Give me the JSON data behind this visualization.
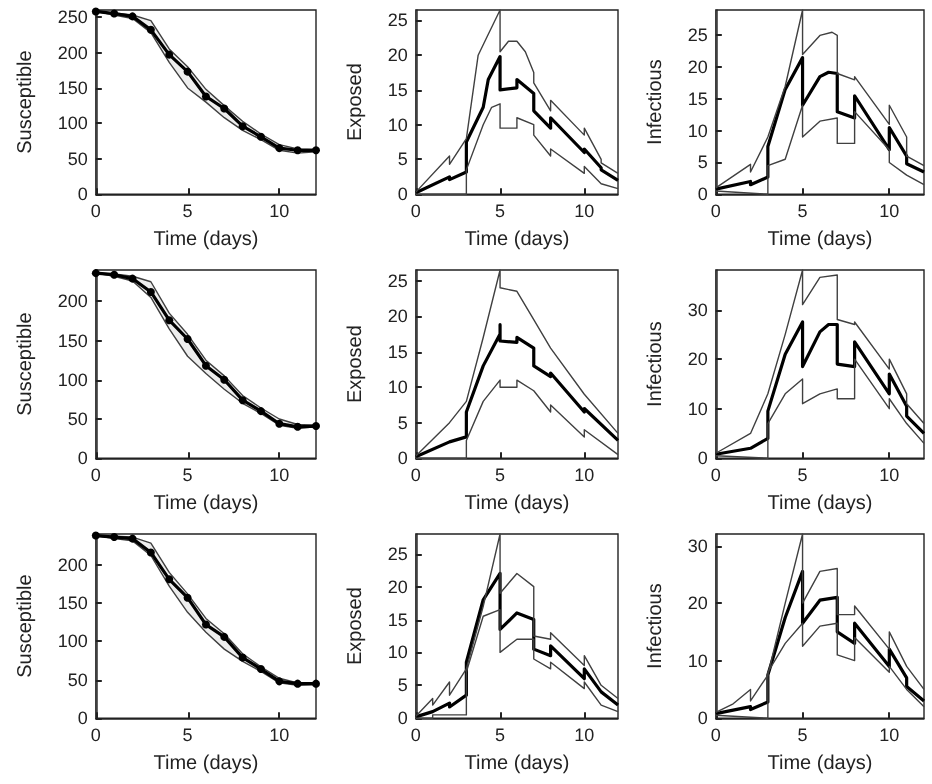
{
  "chart_data": [
    {
      "type": "line",
      "xlabel": "Time (days)",
      "ylabel": "Susceptible",
      "xlim": [
        0,
        12
      ],
      "xticks": [
        0,
        5,
        10
      ],
      "ylim": [
        0,
        260
      ],
      "yticks": [
        0,
        50,
        100,
        150,
        200,
        250
      ],
      "marker": "circle",
      "series": [
        {
          "color": "#000000",
          "x": [
            0,
            1,
            2,
            3,
            4,
            5,
            6,
            7,
            8,
            9,
            10,
            11,
            12
          ],
          "values": [
            258,
            255,
            251,
            232,
            197,
            173,
            138,
            121,
            96,
            81,
            65,
            62,
            62
          ],
          "lower": [
            258,
            253,
            248,
            228,
            186,
            150,
            130,
            108,
            90,
            77,
            62,
            58,
            60
          ],
          "upper": [
            258,
            256,
            253,
            245,
            205,
            180,
            148,
            125,
            103,
            85,
            70,
            64,
            63
          ]
        }
      ]
    },
    {
      "type": "line",
      "xlabel": "Time (days)",
      "ylabel": "Exposed",
      "xlim": [
        0,
        12
      ],
      "xticks": [
        0,
        5,
        10
      ],
      "ylim": [
        0,
        26.5
      ],
      "yticks": [
        0,
        5,
        10,
        15,
        20,
        25
      ],
      "series": [
        {
          "color": "#000000",
          "x": [
            0,
            2,
            2,
            3,
            3,
            4,
            4.3,
            5,
            5,
            6,
            6,
            7,
            7,
            8,
            8,
            10,
            10,
            11,
            11,
            12
          ],
          "values": [
            0.2,
            2.5,
            2.1,
            3.2,
            7.5,
            12.5,
            16.5,
            19.8,
            15,
            15.3,
            16.5,
            14.5,
            12,
            9.5,
            11,
            6,
            6.5,
            3.8,
            3.5,
            2
          ]
        },
        {
          "color": "#404040",
          "x": [
            0,
            2,
            2,
            3,
            3.7,
            4.2,
            5,
            5,
            5.5,
            6,
            6.5,
            7,
            7,
            8,
            8,
            10,
            10,
            11,
            11,
            12
          ],
          "values": [
            0.3,
            5.5,
            4.3,
            8,
            20,
            22.5,
            26.5,
            20.5,
            22,
            22,
            20.5,
            17.5,
            16,
            12,
            13.5,
            8.5,
            9.5,
            5,
            4.5,
            3
          ]
        },
        {
          "color": "#404040",
          "x": [
            0,
            3,
            3,
            4,
            4.5,
            5,
            5,
            6,
            6,
            7,
            7,
            8,
            8,
            10,
            10,
            11,
            12
          ],
          "values": [
            0,
            0,
            3.5,
            10,
            12.5,
            13,
            9.5,
            9.5,
            11,
            10,
            8.5,
            5.5,
            6.5,
            3,
            4,
            1.5,
            0.8
          ]
        }
      ]
    },
    {
      "type": "line",
      "xlabel": "Time (days)",
      "ylabel": "Infectious",
      "xlim": [
        0,
        12
      ],
      "xticks": [
        0,
        5,
        10
      ],
      "ylim": [
        0,
        29
      ],
      "yticks": [
        0,
        5,
        10,
        15,
        20,
        25
      ],
      "series": [
        {
          "color": "#000000",
          "x": [
            0,
            2,
            2,
            3,
            3,
            4,
            5,
            5,
            6,
            6.5,
            7,
            7,
            8,
            8,
            10,
            10,
            11,
            11,
            12
          ],
          "values": [
            0.8,
            2,
            1.5,
            2.7,
            7.5,
            16.5,
            21.5,
            14,
            18.5,
            19.2,
            19,
            13,
            12,
            15.5,
            7,
            10.5,
            6,
            4.8,
            3.5
          ]
        },
        {
          "color": "#404040",
          "x": [
            0,
            2,
            2,
            3,
            4,
            5,
            5,
            6,
            6.7,
            7,
            7,
            8,
            8,
            10,
            10,
            11,
            11,
            12
          ],
          "values": [
            1,
            4.7,
            3.5,
            9,
            17,
            29,
            22,
            25,
            25.5,
            25,
            19,
            18,
            18.5,
            11,
            14,
            9,
            6,
            4.5
          ]
        },
        {
          "color": "#404040",
          "x": [
            0,
            3,
            3,
            4,
            5,
            5,
            6,
            7,
            7,
            8,
            8,
            10,
            10,
            11,
            12
          ],
          "values": [
            0.5,
            0,
            4.5,
            5.5,
            14,
            9,
            11.5,
            12,
            8,
            8,
            13,
            7,
            5,
            3,
            1.5
          ]
        }
      ]
    },
    {
      "type": "line",
      "xlabel": "Time (days)",
      "ylabel": "Susceptible",
      "xlim": [
        0,
        12
      ],
      "xticks": [
        0,
        5,
        10
      ],
      "ylim": [
        0,
        240
      ],
      "yticks": [
        0,
        50,
        100,
        150,
        200
      ],
      "marker": "circle",
      "series": [
        {
          "color": "#000000",
          "x": [
            0,
            1,
            2,
            3,
            4,
            5,
            6,
            7,
            8,
            9,
            10,
            11,
            12
          ],
          "values": [
            236,
            234,
            229,
            212,
            176,
            152,
            118,
            100,
            74,
            60,
            44,
            40,
            41
          ],
          "lower": [
            236,
            232,
            226,
            205,
            165,
            130,
            108,
            88,
            70,
            57,
            42,
            38,
            40
          ],
          "upper": [
            236,
            235,
            232,
            225,
            185,
            158,
            125,
            105,
            80,
            64,
            50,
            43,
            42
          ]
        }
      ]
    },
    {
      "type": "line",
      "xlabel": "Time (days)",
      "ylabel": "Exposed",
      "xlim": [
        0,
        12
      ],
      "xticks": [
        0,
        5,
        10
      ],
      "ylim": [
        0,
        26.5
      ],
      "yticks": [
        0,
        5,
        10,
        15,
        20,
        25
      ],
      "series": [
        {
          "color": "#000000",
          "x": [
            0,
            2,
            3,
            3,
            4,
            5,
            5,
            5,
            6,
            6,
            7,
            7,
            8,
            8,
            10,
            10,
            12
          ],
          "values": [
            0.2,
            2.3,
            3,
            6.5,
            13,
            17.5,
            18.8,
            16.5,
            16.3,
            17,
            15.5,
            13,
            11.5,
            12,
            6.5,
            7,
            2.5
          ]
        },
        {
          "color": "#404040",
          "x": [
            0,
            2,
            3,
            4,
            5,
            5,
            6,
            7,
            8,
            10,
            12
          ],
          "values": [
            0.3,
            5,
            8,
            17,
            26.5,
            24,
            23.5,
            19.5,
            15.5,
            9,
            3.5
          ]
        },
        {
          "color": "#404040",
          "x": [
            0,
            3,
            3,
            4,
            5,
            5,
            6,
            6,
            7,
            8,
            8,
            10,
            10,
            12
          ],
          "values": [
            0,
            0,
            2.5,
            8,
            11,
            10,
            10,
            11,
            9.5,
            6.5,
            7.5,
            3,
            4,
            0.5
          ]
        }
      ]
    },
    {
      "type": "line",
      "xlabel": "Time (days)",
      "ylabel": "Infectious",
      "xlim": [
        0,
        12
      ],
      "xticks": [
        0,
        5,
        10
      ],
      "ylim": [
        0,
        38
      ],
      "yticks": [
        0,
        10,
        20,
        30
      ],
      "series": [
        {
          "color": "#000000",
          "x": [
            0,
            2,
            3,
            3,
            4,
            5,
            5,
            6,
            6.5,
            7,
            7,
            8,
            8,
            10,
            10,
            11,
            11,
            12
          ],
          "values": [
            0.8,
            2,
            4,
            9.5,
            21,
            27.5,
            18.5,
            25.5,
            27,
            27,
            19,
            18.5,
            23.5,
            13,
            17,
            10.5,
            8.5,
            5
          ]
        },
        {
          "color": "#404040",
          "x": [
            0,
            2,
            3,
            4,
            5,
            5,
            6,
            7,
            7,
            8,
            8,
            10,
            10,
            11,
            11,
            12
          ],
          "values": [
            1,
            5,
            13,
            25,
            38,
            31,
            36.5,
            37,
            28,
            27,
            27.5,
            18,
            20,
            13,
            11,
            7
          ]
        },
        {
          "color": "#404040",
          "x": [
            0,
            3,
            3,
            4,
            5,
            5,
            6,
            7,
            7,
            8,
            8,
            10,
            10,
            11,
            12
          ],
          "values": [
            0.5,
            0,
            7,
            13,
            16,
            11,
            13,
            14,
            12,
            12,
            20,
            10,
            12,
            7,
            3
          ]
        }
      ]
    },
    {
      "type": "line",
      "xlabel": "Time (days)",
      "ylabel": "Susceptible",
      "xlim": [
        0,
        12
      ],
      "xticks": [
        0,
        5,
        10
      ],
      "ylim": [
        0,
        240
      ],
      "yticks": [
        0,
        50,
        100,
        150,
        200
      ],
      "marker": "circle",
      "series": [
        {
          "color": "#000000",
          "x": [
            0,
            1,
            2,
            3,
            4,
            5,
            6,
            7,
            8,
            9,
            10,
            11,
            12
          ],
          "values": [
            238,
            236,
            234,
            216,
            181,
            157,
            122,
            106,
            79,
            64,
            48,
            45,
            45
          ],
          "lower": [
            238,
            234,
            231,
            212,
            172,
            138,
            112,
            90,
            74,
            61,
            46,
            43,
            44
          ],
          "upper": [
            238,
            237,
            236,
            228,
            190,
            162,
            130,
            110,
            84,
            67,
            52,
            46,
            46
          ]
        }
      ]
    },
    {
      "type": "line",
      "xlabel": "Time (days)",
      "ylabel": "Exposed",
      "xlim": [
        0,
        12
      ],
      "xticks": [
        0,
        5,
        10
      ],
      "ylim": [
        0,
        28
      ],
      "yticks": [
        0,
        5,
        10,
        15,
        20,
        25
      ],
      "series": [
        {
          "color": "#000000",
          "x": [
            0,
            1,
            2,
            2,
            3,
            3,
            4,
            5,
            5,
            6,
            6.5,
            7,
            7,
            8,
            8,
            10,
            10,
            11,
            12
          ],
          "values": [
            0.2,
            1,
            2.3,
            1.7,
            3.5,
            8.5,
            18,
            22,
            13.5,
            16,
            15.5,
            15,
            10.5,
            9.5,
            11,
            6,
            7.5,
            4,
            2
          ]
        },
        {
          "color": "#404040",
          "x": [
            0,
            1,
            1,
            2,
            2,
            3,
            4,
            5,
            5,
            6,
            7,
            7,
            8,
            8,
            10,
            10,
            11,
            12
          ],
          "values": [
            0.3,
            3,
            2,
            5.5,
            3.5,
            7.5,
            17,
            28,
            19,
            22,
            20,
            12.5,
            12,
            13,
            8,
            9.5,
            5,
            3
          ]
        },
        {
          "color": "#404040",
          "x": [
            0,
            1,
            1,
            3,
            3,
            4,
            5,
            5,
            6,
            7,
            7,
            8,
            8,
            10,
            10,
            11,
            12
          ],
          "values": [
            0,
            0,
            0.5,
            0.5,
            7,
            15.5,
            16.5,
            10,
            12,
            12,
            9,
            7.5,
            8.5,
            4.5,
            5.5,
            2,
            1
          ]
        }
      ]
    },
    {
      "type": "line",
      "xlabel": "Time (days)",
      "ylabel": "Infectious",
      "xlim": [
        0,
        12
      ],
      "xticks": [
        0,
        5,
        10
      ],
      "ylim": [
        0,
        32
      ],
      "yticks": [
        0,
        10,
        20,
        30
      ],
      "series": [
        {
          "color": "#000000",
          "x": [
            0,
            2,
            2,
            3,
            3,
            4,
            5,
            5,
            6,
            7,
            7,
            8,
            8,
            10,
            10,
            11,
            11,
            12
          ],
          "values": [
            0.8,
            2,
            1.5,
            2.8,
            7.5,
            17.5,
            25.5,
            16.5,
            20.5,
            21,
            15,
            13,
            16.5,
            9,
            12,
            7,
            5.5,
            3
          ]
        },
        {
          "color": "#404040",
          "x": [
            0,
            1,
            2,
            2,
            3,
            4,
            5,
            5,
            6,
            7,
            7,
            8,
            8,
            10,
            10,
            11,
            12
          ],
          "values": [
            1,
            2.5,
            5,
            3,
            7.5,
            20,
            32,
            20,
            25.5,
            26,
            18,
            18,
            19.5,
            12,
            15,
            9,
            5
          ]
        },
        {
          "color": "#404040",
          "x": [
            0,
            3,
            3,
            4,
            5,
            5,
            6,
            7,
            7,
            8,
            8,
            10,
            10,
            11,
            12
          ],
          "values": [
            0.5,
            0,
            8,
            13,
            16.5,
            12.5,
            16,
            16.5,
            11,
            10,
            14,
            8,
            9,
            5,
            2
          ]
        }
      ]
    }
  ]
}
